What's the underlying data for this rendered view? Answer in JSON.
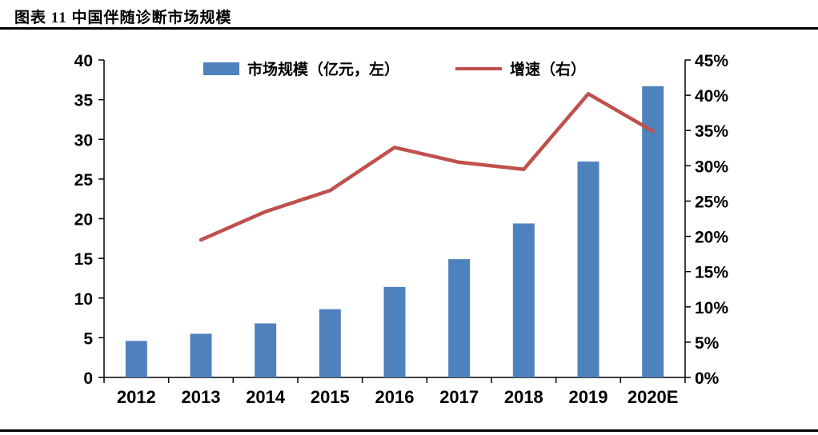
{
  "header": {
    "title": "图表 11 中国伴随诊断市场规模"
  },
  "chart_data": {
    "type": "bar+line",
    "title": "中国伴随诊断市场规模",
    "categories": [
      "2012",
      "2013",
      "2014",
      "2015",
      "2016",
      "2017",
      "2018",
      "2019",
      "2020E"
    ],
    "series": [
      {
        "name": "市场规模（亿元，左）",
        "type": "bar",
        "axis": "left",
        "color": "#4F81BD",
        "values": [
          4.6,
          5.5,
          6.8,
          8.6,
          11.4,
          14.9,
          19.4,
          27.2,
          36.7
        ]
      },
      {
        "name": "增速（右）",
        "type": "line",
        "axis": "right",
        "color": "#C0504D",
        "values": [
          null,
          19.5,
          23.5,
          26.5,
          32.6,
          30.5,
          29.5,
          40.2,
          34.9
        ]
      }
    ],
    "left_axis": {
      "min": 0,
      "max": 40,
      "step": 5,
      "labels": [
        "0",
        "5",
        "10",
        "15",
        "20",
        "25",
        "30",
        "35",
        "40"
      ]
    },
    "right_axis": {
      "min": 0,
      "max": 45,
      "step": 5,
      "labels": [
        "0%",
        "5%",
        "10%",
        "15%",
        "20%",
        "25%",
        "30%",
        "35%",
        "40%",
        "45%"
      ]
    },
    "legend_position": "top",
    "grid": false
  },
  "colors": {
    "bar": "#4F81BD",
    "line": "#C0504D",
    "axis": "#000000",
    "rule": "#000000"
  }
}
